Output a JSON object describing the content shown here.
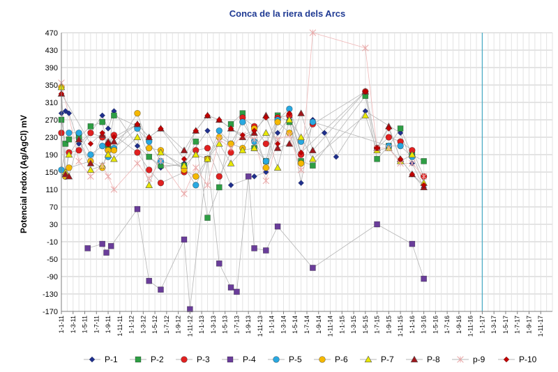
{
  "chart_data": {
    "type": "line",
    "title": "Conca de la riera dels Arcs",
    "xlabel": "",
    "ylabel": "Potencial redox (Ag/AgCl)  mV",
    "ylim": [
      -170,
      470
    ],
    "yticks": [
      -170,
      -130,
      -90,
      -50,
      -10,
      30,
      70,
      110,
      150,
      190,
      230,
      270,
      310,
      350,
      390,
      430,
      470
    ],
    "grid": true,
    "legend_position": "bottom",
    "x_range_months": [
      0,
      84
    ],
    "x_tick_labels": [
      "1-1-11",
      "1-3-11",
      "1-5-11",
      "1-7-11",
      "1-9-11",
      "1-11-11",
      "1-1-12",
      "1-3-12",
      "1-5-12",
      "1-7-12",
      "1-9-12",
      "1-11-12",
      "1-1-13",
      "1-3-13",
      "1-5-13",
      "1-7-13",
      "1-9-13",
      "1-11-13",
      "1-1-14",
      "1-3-14",
      "1-5-14",
      "1-7-14",
      "1-9-14",
      "1-11-14",
      "1-1-15",
      "1-3-15",
      "1-5-15",
      "1-7-15",
      "1-9-15",
      "1-11-15",
      "1-1-16",
      "1-3-16",
      "1-5-16",
      "1-7-16",
      "1-9-16",
      "1-11-16",
      "1-1-17",
      "1-3-17",
      "1-5-17",
      "1-7-17",
      "1-9-17",
      "1-11-17"
    ],
    "x_tick_months": [
      0,
      2,
      4,
      6,
      8,
      10,
      12,
      14,
      16,
      18,
      20,
      22,
      24,
      26,
      28,
      30,
      32,
      34,
      36,
      38,
      40,
      42,
      44,
      46,
      48,
      50,
      52,
      54,
      56,
      58,
      60,
      62,
      64,
      66,
      68,
      70,
      72,
      74,
      76,
      78,
      80,
      82
    ],
    "marker_line": {
      "x_month": 72,
      "color": "#4bacc6"
    },
    "series": [
      {
        "name": "P-1",
        "marker": "diamond",
        "color": "#1f2f8c",
        "points": [
          [
            0,
            285
          ],
          [
            0.7,
            290
          ],
          [
            1.3,
            285
          ],
          [
            3,
            215
          ],
          [
            5,
            240
          ],
          [
            7,
            280
          ],
          [
            8,
            250
          ],
          [
            9,
            290
          ],
          [
            13,
            210
          ],
          [
            17,
            160
          ],
          [
            21,
            170
          ],
          [
            25,
            245
          ],
          [
            29,
            120
          ],
          [
            33,
            140
          ],
          [
            35,
            150
          ],
          [
            37,
            240
          ],
          [
            39,
            275
          ],
          [
            41,
            125
          ],
          [
            43,
            270
          ],
          [
            45,
            240
          ],
          [
            47,
            185
          ],
          [
            52,
            290
          ],
          [
            58,
            240
          ],
          [
            60,
            170
          ],
          [
            62,
            115
          ]
        ]
      },
      {
        "name": "P-2",
        "marker": "square",
        "color": "#2e9e44",
        "points": [
          [
            0,
            270
          ],
          [
            0.7,
            215
          ],
          [
            1.3,
            225
          ],
          [
            3,
            230
          ],
          [
            5,
            255
          ],
          [
            7,
            265
          ],
          [
            8,
            205
          ],
          [
            9,
            280
          ],
          [
            13,
            255
          ],
          [
            15,
            185
          ],
          [
            17,
            165
          ],
          [
            21,
            165
          ],
          [
            23,
            220
          ],
          [
            25,
            45
          ],
          [
            27,
            115
          ],
          [
            29,
            260
          ],
          [
            31,
            285
          ],
          [
            33,
            205
          ],
          [
            35,
            175
          ],
          [
            37,
            280
          ],
          [
            39,
            265
          ],
          [
            41,
            175
          ],
          [
            43,
            165
          ],
          [
            52,
            325
          ],
          [
            54,
            180
          ],
          [
            56,
            210
          ],
          [
            58,
            250
          ],
          [
            60,
            190
          ],
          [
            62,
            175
          ]
        ]
      },
      {
        "name": "P-3",
        "marker": "circle",
        "color": "#e02020",
        "points": [
          [
            0,
            240
          ],
          [
            0.7,
            140
          ],
          [
            1.3,
            195
          ],
          [
            3,
            200
          ],
          [
            5,
            240
          ],
          [
            7,
            230
          ],
          [
            8,
            215
          ],
          [
            9,
            235
          ],
          [
            13,
            195
          ],
          [
            15,
            155
          ],
          [
            17,
            125
          ],
          [
            21,
            150
          ],
          [
            23,
            200
          ],
          [
            25,
            205
          ],
          [
            27,
            140
          ],
          [
            29,
            195
          ],
          [
            31,
            275
          ],
          [
            33,
            255
          ],
          [
            35,
            215
          ],
          [
            37,
            275
          ],
          [
            39,
            280
          ],
          [
            41,
            190
          ],
          [
            43,
            260
          ],
          [
            52,
            335
          ],
          [
            54,
            205
          ],
          [
            56,
            230
          ],
          [
            58,
            220
          ],
          [
            60,
            200
          ],
          [
            62,
            140
          ]
        ]
      },
      {
        "name": "P-4",
        "marker": "square",
        "color": "#6a3d9a",
        "points": [
          [
            4.5,
            -25
          ],
          [
            7,
            -15
          ],
          [
            7.7,
            -35
          ],
          [
            8.5,
            -20
          ],
          [
            13,
            65
          ],
          [
            15,
            -100
          ],
          [
            17,
            -120
          ],
          [
            21,
            -5
          ],
          [
            22,
            -165
          ],
          [
            25,
            180
          ],
          [
            27,
            -60
          ],
          [
            29,
            -115
          ],
          [
            30,
            -125
          ],
          [
            32,
            140
          ],
          [
            33,
            -25
          ],
          [
            35,
            -30
          ],
          [
            37,
            25
          ],
          [
            43,
            -70
          ],
          [
            54,
            30
          ],
          [
            60,
            -15
          ],
          [
            62,
            -95
          ]
        ]
      },
      {
        "name": "P-5",
        "marker": "circle",
        "color": "#29a8e0",
        "points": [
          [
            0,
            155
          ],
          [
            1.3,
            240
          ],
          [
            3,
            240
          ],
          [
            5,
            190
          ],
          [
            7,
            210
          ],
          [
            8,
            185
          ],
          [
            9,
            205
          ],
          [
            13,
            250
          ],
          [
            15,
            220
          ],
          [
            17,
            175
          ],
          [
            21,
            160
          ],
          [
            23,
            120
          ],
          [
            25,
            180
          ],
          [
            27,
            245
          ],
          [
            29,
            215
          ],
          [
            31,
            265
          ],
          [
            33,
            220
          ],
          [
            35,
            175
          ],
          [
            37,
            270
          ],
          [
            39,
            295
          ],
          [
            41,
            220
          ],
          [
            43,
            265
          ],
          [
            56,
            210
          ],
          [
            58,
            210
          ],
          [
            60,
            185
          ]
        ]
      },
      {
        "name": "P-6",
        "marker": "circle",
        "color": "#f5b800",
        "points": [
          [
            0,
            345
          ],
          [
            0.7,
            140
          ],
          [
            1.3,
            160
          ],
          [
            5,
            175
          ],
          [
            7,
            160
          ],
          [
            8,
            200
          ],
          [
            9,
            200
          ],
          [
            13,
            285
          ],
          [
            15,
            205
          ],
          [
            17,
            200
          ],
          [
            21,
            155
          ],
          [
            23,
            140
          ],
          [
            25,
            180
          ],
          [
            27,
            230
          ],
          [
            29,
            215
          ],
          [
            31,
            205
          ],
          [
            33,
            250
          ],
          [
            35,
            160
          ],
          [
            37,
            265
          ],
          [
            39,
            240
          ],
          [
            41,
            170
          ]
        ]
      },
      {
        "name": "P-7",
        "marker": "triangle",
        "color": "#e8e800",
        "points": [
          [
            0,
            345
          ],
          [
            0.7,
            150
          ],
          [
            1.3,
            190
          ],
          [
            3,
            225
          ],
          [
            5,
            155
          ],
          [
            7,
            165
          ],
          [
            8,
            190
          ],
          [
            9,
            180
          ],
          [
            13,
            230
          ],
          [
            15,
            120
          ],
          [
            17,
            195
          ],
          [
            21,
            165
          ],
          [
            23,
            190
          ],
          [
            25,
            180
          ],
          [
            27,
            215
          ],
          [
            29,
            170
          ],
          [
            31,
            200
          ],
          [
            33,
            205
          ],
          [
            35,
            240
          ],
          [
            37,
            160
          ],
          [
            39,
            270
          ],
          [
            41,
            230
          ],
          [
            43,
            180
          ],
          [
            52,
            280
          ],
          [
            54,
            200
          ],
          [
            56,
            205
          ],
          [
            58,
            175
          ],
          [
            60,
            190
          ],
          [
            62,
            125
          ]
        ]
      },
      {
        "name": "P-8",
        "marker": "triangle",
        "color": "#a0161b",
        "points": [
          [
            0,
            330
          ],
          [
            0.7,
            145
          ],
          [
            1.3,
            140
          ],
          [
            3,
            225
          ],
          [
            5,
            170
          ],
          [
            7,
            235
          ],
          [
            8,
            220
          ],
          [
            9,
            220
          ],
          [
            13,
            260
          ],
          [
            15,
            230
          ],
          [
            17,
            250
          ],
          [
            21,
            200
          ],
          [
            23,
            245
          ],
          [
            25,
            280
          ],
          [
            27,
            270
          ],
          [
            29,
            250
          ],
          [
            31,
            230
          ],
          [
            33,
            240
          ],
          [
            35,
            280
          ],
          [
            37,
            205
          ],
          [
            39,
            215
          ],
          [
            41,
            285
          ],
          [
            43,
            200
          ],
          [
            52,
            335
          ],
          [
            54,
            205
          ],
          [
            56,
            255
          ],
          [
            58,
            180
          ],
          [
            60,
            145
          ],
          [
            62,
            115
          ]
        ]
      },
      {
        "name": "p-9",
        "marker": "star",
        "color": "#e8a8a8",
        "points": [
          [
            0,
            355
          ],
          [
            3,
            175
          ],
          [
            5,
            140
          ],
          [
            7,
            165
          ],
          [
            8,
            140
          ],
          [
            9,
            110
          ],
          [
            13,
            170
          ],
          [
            15,
            135
          ],
          [
            17,
            175
          ],
          [
            21,
            100
          ],
          [
            23,
            160
          ],
          [
            25,
            120
          ],
          [
            27,
            225
          ],
          [
            29,
            205
          ],
          [
            31,
            235
          ],
          [
            33,
            225
          ],
          [
            35,
            130
          ],
          [
            37,
            225
          ],
          [
            39,
            235
          ],
          [
            41,
            155
          ],
          [
            43,
            470
          ],
          [
            52,
            435
          ],
          [
            54,
            205
          ],
          [
            56,
            205
          ],
          [
            58,
            170
          ],
          [
            60,
            170
          ],
          [
            62,
            140
          ]
        ]
      },
      {
        "name": "P-10",
        "marker": "diamond",
        "color": "#c00000",
        "points": [
          [
            0,
            330
          ],
          [
            5,
            215
          ],
          [
            7,
            240
          ],
          [
            8,
            215
          ],
          [
            9,
            230
          ],
          [
            13,
            260
          ],
          [
            15,
            230
          ],
          [
            17,
            250
          ],
          [
            21,
            180
          ],
          [
            23,
            245
          ],
          [
            25,
            280
          ],
          [
            27,
            270
          ],
          [
            29,
            250
          ],
          [
            31,
            235
          ],
          [
            33,
            245
          ],
          [
            35,
            275
          ],
          [
            37,
            215
          ],
          [
            39,
            285
          ],
          [
            41,
            195
          ],
          [
            52,
            335
          ],
          [
            54,
            205
          ],
          [
            56,
            250
          ],
          [
            58,
            180
          ],
          [
            60,
            145
          ],
          [
            62,
            120
          ]
        ]
      }
    ]
  }
}
